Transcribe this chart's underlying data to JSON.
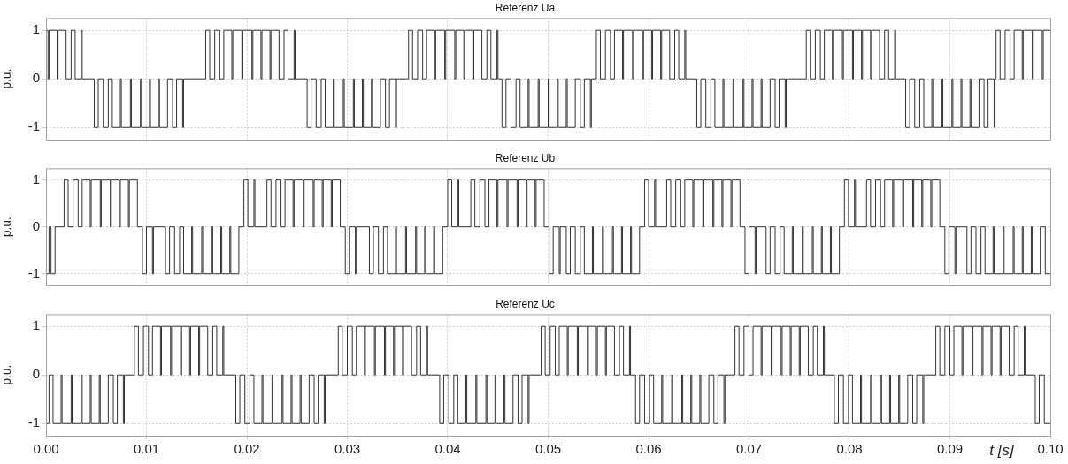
{
  "chart_data": [
    {
      "type": "step",
      "title": "Referenz Ua",
      "ylabel": "p.u.",
      "xlim": [
        0,
        0.1
      ],
      "ylim": [
        -1.25,
        1.25
      ],
      "yticks": [
        -1,
        0,
        1
      ],
      "xticks": [
        {
          "value": 0,
          "label": null
        },
        {
          "value": 0.01,
          "label": null
        },
        {
          "value": 0.02,
          "label": null
        },
        {
          "value": 0.03,
          "label": null
        },
        {
          "value": 0.04,
          "label": null
        },
        {
          "value": 0.05,
          "label": null
        },
        {
          "value": 0.06,
          "label": null
        },
        {
          "value": 0.07,
          "label": null
        },
        {
          "value": 0.08,
          "label": null
        },
        {
          "value": 0.09,
          "label": null
        },
        {
          "value": 0.1,
          "label": null
        }
      ],
      "grid": true,
      "tick_labels": "y",
      "series": [
        {
          "color": "#333333",
          "x": [
            0,
            0.0002,
            0.0003,
            0.0011,
            0.0012,
            0.002,
            0.0025,
            0.0029,
            0.0035,
            0.0036,
            0.0048,
            0.0052,
            0.0057,
            0.0062,
            0.0066,
            0.0074,
            0.0075,
            0.0084,
            0.0085,
            0.0094,
            0.0095,
            0.0103,
            0.0104,
            0.0112,
            0.0113,
            0.0121,
            0.0126,
            0.013,
            0.0136,
            0.0137,
            0.0159,
            0.0163,
            0.0168,
            0.0173,
            0.0177,
            0.0185,
            0.0186,
            0.0195,
            0.0196,
            0.0205,
            0.0206,
            0.0214,
            0.0215,
            0.0223,
            0.0224,
            0.0232,
            0.0237,
            0.0241,
            0.0247,
            0.0248,
            0.026,
            0.0264,
            0.0269,
            0.0274,
            0.0278,
            0.0286,
            0.0287,
            0.0296,
            0.0297,
            0.0306,
            0.0307,
            0.0315,
            0.0316,
            0.0324,
            0.0325,
            0.0333,
            0.0338,
            0.0342,
            0.0348,
            0.0349,
            0.0361,
            0.0365,
            0.037,
            0.0375,
            0.0379,
            0.0387,
            0.0388,
            0.0397,
            0.0398,
            0.0407,
            0.0408,
            0.0416,
            0.0417,
            0.0425,
            0.0426,
            0.0434,
            0.0439,
            0.0443,
            0.0449,
            0.045,
            0.0454,
            0.0458,
            0.0463,
            0.0468,
            0.0472,
            0.048,
            0.0481,
            0.049,
            0.0491,
            0.05,
            0.0501,
            0.0509,
            0.051,
            0.0518,
            0.0519,
            0.0527,
            0.0532,
            0.0536,
            0.0542,
            0.0543,
            0.0548,
            0.0552,
            0.0557,
            0.0562,
            0.0566,
            0.0574,
            0.0575,
            0.0584,
            0.0585,
            0.0594,
            0.0595,
            0.0603,
            0.0604,
            0.0612,
            0.0613,
            0.0621,
            0.0626,
            0.063,
            0.0636,
            0.0637,
            0.0648,
            0.0652,
            0.0657,
            0.0662,
            0.0666,
            0.0674,
            0.0675,
            0.0684,
            0.0685,
            0.0694,
            0.0695,
            0.0703,
            0.0704,
            0.0712,
            0.0713,
            0.0721,
            0.0726,
            0.073,
            0.0736,
            0.0737,
            0.0757,
            0.0761,
            0.0766,
            0.0771,
            0.0775,
            0.0783,
            0.0784,
            0.0793,
            0.0794,
            0.0803,
            0.0804,
            0.0812,
            0.0813,
            0.0821,
            0.0822,
            0.083,
            0.0835,
            0.0839,
            0.0845,
            0.0846,
            0.0856,
            0.086,
            0.0865,
            0.087,
            0.0874,
            0.0882,
            0.0883,
            0.0892,
            0.0893,
            0.0902,
            0.0903,
            0.0911,
            0.0912,
            0.092,
            0.0921,
            0.0929,
            0.0934,
            0.0938,
            0.0944,
            0.0945,
            0.0946,
            0.095,
            0.0955,
            0.096,
            0.0964,
            0.0972,
            0.0973,
            0.0982,
            0.0983,
            0.0992,
            0.0993,
            0.1
          ],
          "values": [
            1,
            0,
            1,
            0,
            1,
            0,
            1,
            0,
            1,
            0,
            -1,
            0,
            -1,
            0,
            -1,
            0,
            -1,
            0,
            -1,
            0,
            -1,
            0,
            -1,
            0,
            -1,
            0,
            -1,
            0,
            -1,
            0,
            1,
            0,
            1,
            0,
            1,
            0,
            1,
            0,
            1,
            0,
            1,
            0,
            1,
            0,
            1,
            0,
            1,
            0,
            1,
            0,
            -1,
            0,
            -1,
            0,
            -1,
            0,
            -1,
            0,
            -1,
            0,
            -1,
            0,
            -1,
            0,
            -1,
            0,
            -1,
            0,
            -1,
            0,
            1,
            0,
            1,
            0,
            1,
            0,
            1,
            0,
            1,
            0,
            1,
            0,
            1,
            0,
            1,
            0,
            1,
            0,
            1,
            0,
            -1,
            0,
            -1,
            0,
            -1,
            0,
            -1,
            0,
            -1,
            0,
            -1,
            0,
            -1,
            0,
            -1,
            0,
            -1,
            0,
            -1,
            0,
            1,
            0,
            1,
            0,
            1,
            0,
            1,
            0,
            1,
            0,
            1,
            0,
            1,
            0,
            1,
            0,
            1,
            0,
            1,
            0,
            -1,
            0,
            -1,
            0,
            -1,
            0,
            -1,
            0,
            -1,
            0,
            -1,
            0,
            -1,
            0,
            -1,
            0,
            -1,
            0,
            -1,
            0,
            1,
            0,
            1,
            0,
            1,
            0,
            1,
            0,
            1,
            0,
            1,
            0,
            1,
            0,
            1,
            0,
            1,
            0,
            1,
            0,
            -1,
            0,
            -1,
            0,
            -1,
            0,
            -1,
            0,
            -1,
            0,
            -1,
            0,
            -1,
            0,
            -1,
            0,
            -1,
            0,
            -1,
            0,
            1,
            0,
            1,
            0,
            1,
            0,
            1,
            0,
            1,
            0,
            1,
            1
          ]
        }
      ]
    },
    {
      "type": "step",
      "title": "Referenz Ub",
      "ylabel": "p.u.",
      "xlim": [
        0,
        0.1
      ],
      "ylim": [
        -1.25,
        1.25
      ],
      "yticks": [
        -1,
        0,
        1
      ],
      "xticks": [
        {
          "value": 0,
          "label": null
        },
        {
          "value": 0.01,
          "label": null
        },
        {
          "value": 0.02,
          "label": null
        },
        {
          "value": 0.03,
          "label": null
        },
        {
          "value": 0.04,
          "label": null
        },
        {
          "value": 0.05,
          "label": null
        },
        {
          "value": 0.06,
          "label": null
        },
        {
          "value": 0.07,
          "label": null
        },
        {
          "value": 0.08,
          "label": null
        },
        {
          "value": 0.09,
          "label": null
        },
        {
          "value": 0.1,
          "label": null
        }
      ],
      "grid": true,
      "tick_labels": "y",
      "series": [
        {
          "color": "#333333",
          "x": [
            0,
            0.0003,
            0.0005,
            0.0009,
            0.0018,
            0.0022,
            0.0027,
            0.0032,
            0.0036,
            0.0044,
            0.0045,
            0.0054,
            0.0055,
            0.0064,
            0.0065,
            0.0073,
            0.0074,
            0.0082,
            0.0083,
            0.0091,
            0.0096,
            0.01,
            0.0106,
            0.0107,
            0.0119,
            0.0123,
            0.0128,
            0.0133,
            0.0137,
            0.0145,
            0.0146,
            0.0155,
            0.0156,
            0.0165,
            0.0166,
            0.0174,
            0.0175,
            0.0183,
            0.0184,
            0.0192,
            0.0197,
            0.0201,
            0.0207,
            0.0208,
            0.022,
            0.0224,
            0.0229,
            0.0234,
            0.0238,
            0.0246,
            0.0247,
            0.0256,
            0.0257,
            0.0266,
            0.0267,
            0.0275,
            0.0276,
            0.0284,
            0.0285,
            0.0293,
            0.0298,
            0.0302,
            0.0308,
            0.0309,
            0.0322,
            0.0326,
            0.0331,
            0.0336,
            0.034,
            0.0348,
            0.0349,
            0.0358,
            0.0359,
            0.0368,
            0.0369,
            0.0377,
            0.0378,
            0.0386,
            0.0387,
            0.0395,
            0.04,
            0.0404,
            0.041,
            0.0411,
            0.0423,
            0.0427,
            0.0432,
            0.0437,
            0.0441,
            0.0449,
            0.045,
            0.0459,
            0.046,
            0.0469,
            0.047,
            0.0478,
            0.0479,
            0.0487,
            0.0488,
            0.0496,
            0.0501,
            0.0505,
            0.0511,
            0.0512,
            0.0518,
            0.0522,
            0.0527,
            0.0532,
            0.0536,
            0.0544,
            0.0545,
            0.0554,
            0.0555,
            0.0564,
            0.0565,
            0.0573,
            0.0574,
            0.0582,
            0.0583,
            0.0591,
            0.0596,
            0.06,
            0.0606,
            0.0607,
            0.0618,
            0.0622,
            0.0627,
            0.0632,
            0.0636,
            0.0644,
            0.0645,
            0.0654,
            0.0655,
            0.0664,
            0.0665,
            0.0673,
            0.0674,
            0.0682,
            0.0683,
            0.0691,
            0.0696,
            0.07,
            0.0706,
            0.0707,
            0.0717,
            0.0721,
            0.0726,
            0.0731,
            0.0735,
            0.0743,
            0.0744,
            0.0753,
            0.0754,
            0.0763,
            0.0764,
            0.0772,
            0.0773,
            0.0781,
            0.0782,
            0.079,
            0.0795,
            0.0799,
            0.0805,
            0.0806,
            0.0817,
            0.0821,
            0.0826,
            0.0831,
            0.0835,
            0.0843,
            0.0844,
            0.0853,
            0.0854,
            0.0863,
            0.0864,
            0.0872,
            0.0873,
            0.0881,
            0.0882,
            0.089,
            0.0895,
            0.0899,
            0.0905,
            0.0906,
            0.0917,
            0.0921,
            0.0926,
            0.0931,
            0.0935,
            0.0943,
            0.0944,
            0.0953,
            0.0954,
            0.0963,
            0.0964,
            0.0972,
            0.0973,
            0.0981,
            0.0982,
            0.099,
            0.0995,
            0.1
          ],
          "values": [
            -1,
            0,
            -1,
            0,
            1,
            0,
            1,
            0,
            1,
            0,
            1,
            0,
            1,
            0,
            1,
            0,
            1,
            0,
            1,
            0,
            -1,
            0,
            -1,
            0,
            -1,
            0,
            -1,
            0,
            -1,
            0,
            -1,
            0,
            -1,
            0,
            -1,
            0,
            -1,
            0,
            -1,
            0,
            1,
            0,
            1,
            0,
            1,
            0,
            1,
            0,
            1,
            0,
            1,
            0,
            1,
            0,
            1,
            0,
            1,
            0,
            1,
            0,
            -1,
            0,
            -1,
            0,
            -1,
            0,
            -1,
            0,
            -1,
            0,
            -1,
            0,
            -1,
            0,
            -1,
            0,
            -1,
            0,
            -1,
            0,
            1,
            0,
            1,
            0,
            1,
            0,
            1,
            0,
            1,
            0,
            1,
            0,
            1,
            0,
            1,
            0,
            1,
            0,
            1,
            0,
            -1,
            0,
            -1,
            0,
            -1,
            0,
            -1,
            0,
            -1,
            0,
            -1,
            0,
            -1,
            0,
            -1,
            0,
            -1,
            0,
            -1,
            0,
            1,
            0,
            1,
            0,
            1,
            0,
            1,
            0,
            1,
            0,
            1,
            0,
            1,
            0,
            1,
            0,
            1,
            0,
            1,
            0,
            -1,
            0,
            -1,
            0,
            -1,
            0,
            -1,
            0,
            -1,
            0,
            -1,
            0,
            -1,
            0,
            -1,
            0,
            -1,
            0,
            -1,
            0,
            1,
            0,
            1,
            0,
            1,
            0,
            1,
            0,
            1,
            0,
            1,
            0,
            1,
            0,
            1,
            0,
            1,
            0,
            1,
            0,
            -1,
            0,
            -1,
            0,
            -1,
            0,
            -1,
            0,
            -1,
            0,
            -1,
            0,
            -1,
            0,
            -1,
            0,
            -1,
            0,
            -1,
            0,
            -1,
            -1
          ]
        }
      ]
    },
    {
      "type": "step",
      "title": "Referenz Uc",
      "ylabel": "p.u.",
      "xlabel": "t [s]",
      "xlim": [
        0,
        0.1
      ],
      "ylim": [
        -1.25,
        1.25
      ],
      "yticks": [
        -1,
        0,
        1
      ],
      "xticks": [
        {
          "value": 0,
          "label": "0.00"
        },
        {
          "value": 0.01,
          "label": "0.01"
        },
        {
          "value": 0.02,
          "label": "0.02"
        },
        {
          "value": 0.03,
          "label": "0.03"
        },
        {
          "value": 0.04,
          "label": "0.04"
        },
        {
          "value": 0.05,
          "label": "0.05"
        },
        {
          "value": 0.06,
          "label": "0.06"
        },
        {
          "value": 0.07,
          "label": "0.07"
        },
        {
          "value": 0.08,
          "label": "0.08"
        },
        {
          "value": 0.09,
          "label": "0.09"
        },
        {
          "value": 0.1,
          "label": "0.10"
        }
      ],
      "grid": true,
      "series": [
        {
          "color": "#333333",
          "x": [
            0,
            0.0003,
            0.0007,
            0.0015,
            0.0016,
            0.0025,
            0.0026,
            0.0035,
            0.0036,
            0.0044,
            0.0045,
            0.0053,
            0.0054,
            0.0062,
            0.0067,
            0.0071,
            0.0077,
            0.0078,
            0.0088,
            0.0092,
            0.0097,
            0.0102,
            0.0106,
            0.0114,
            0.0115,
            0.0124,
            0.0125,
            0.0134,
            0.0135,
            0.0143,
            0.0144,
            0.0152,
            0.0153,
            0.0161,
            0.0166,
            0.017,
            0.0176,
            0.0177,
            0.0189,
            0.0193,
            0.0198,
            0.0203,
            0.0207,
            0.0215,
            0.0216,
            0.0225,
            0.0226,
            0.0235,
            0.0236,
            0.0244,
            0.0245,
            0.0253,
            0.0254,
            0.0262,
            0.0267,
            0.0271,
            0.0277,
            0.0278,
            0.0291,
            0.0295,
            0.03,
            0.0305,
            0.0309,
            0.0317,
            0.0318,
            0.0327,
            0.0328,
            0.0337,
            0.0338,
            0.0346,
            0.0347,
            0.0355,
            0.0356,
            0.0364,
            0.0369,
            0.0373,
            0.0379,
            0.038,
            0.0392,
            0.0396,
            0.0401,
            0.0406,
            0.041,
            0.0418,
            0.0419,
            0.0428,
            0.0429,
            0.0438,
            0.0439,
            0.0447,
            0.0448,
            0.0456,
            0.0457,
            0.0465,
            0.047,
            0.0474,
            0.048,
            0.0481,
            0.0493,
            0.0497,
            0.0502,
            0.0507,
            0.0511,
            0.0519,
            0.052,
            0.0529,
            0.053,
            0.0539,
            0.054,
            0.0548,
            0.0549,
            0.0557,
            0.0558,
            0.0566,
            0.0571,
            0.0575,
            0.0581,
            0.0582,
            0.0587,
            0.0591,
            0.0596,
            0.0601,
            0.0605,
            0.0613,
            0.0614,
            0.0623,
            0.0624,
            0.0633,
            0.0634,
            0.0642,
            0.0643,
            0.0651,
            0.0652,
            0.066,
            0.0665,
            0.0669,
            0.0675,
            0.0676,
            0.0686,
            0.069,
            0.0695,
            0.07,
            0.0704,
            0.0712,
            0.0713,
            0.0722,
            0.0723,
            0.0732,
            0.0733,
            0.0741,
            0.0742,
            0.075,
            0.0751,
            0.0759,
            0.0764,
            0.0768,
            0.0774,
            0.0775,
            0.0785,
            0.0789,
            0.0794,
            0.0799,
            0.0803,
            0.0811,
            0.0812,
            0.0821,
            0.0822,
            0.0831,
            0.0832,
            0.084,
            0.0841,
            0.0849,
            0.085,
            0.0858,
            0.0863,
            0.0867,
            0.0873,
            0.0874,
            0.0886,
            0.089,
            0.0895,
            0.09,
            0.0904,
            0.0912,
            0.0913,
            0.0922,
            0.0923,
            0.0932,
            0.0933,
            0.0941,
            0.0942,
            0.095,
            0.0951,
            0.0959,
            0.0964,
            0.0968,
            0.0974,
            0.0975,
            0.0985,
            0.0989,
            0.0994,
            0.1
          ],
          "values": [
            -1,
            0,
            -1,
            0,
            -1,
            0,
            -1,
            0,
            -1,
            0,
            -1,
            0,
            -1,
            0,
            -1,
            0,
            -1,
            0,
            1,
            0,
            1,
            0,
            1,
            0,
            1,
            0,
            1,
            0,
            1,
            0,
            1,
            0,
            1,
            0,
            1,
            0,
            1,
            0,
            -1,
            0,
            -1,
            0,
            -1,
            0,
            -1,
            0,
            -1,
            0,
            -1,
            0,
            -1,
            0,
            -1,
            0,
            -1,
            0,
            -1,
            0,
            1,
            0,
            1,
            0,
            1,
            0,
            1,
            0,
            1,
            0,
            1,
            0,
            1,
            0,
            1,
            0,
            1,
            0,
            1,
            0,
            -1,
            0,
            -1,
            0,
            -1,
            0,
            -1,
            0,
            -1,
            0,
            -1,
            0,
            -1,
            0,
            -1,
            0,
            -1,
            0,
            -1,
            0,
            1,
            0,
            1,
            0,
            1,
            0,
            1,
            0,
            1,
            0,
            1,
            0,
            1,
            0,
            1,
            0,
            1,
            0,
            1,
            0,
            -1,
            0,
            -1,
            0,
            -1,
            0,
            -1,
            0,
            -1,
            0,
            -1,
            0,
            -1,
            0,
            -1,
            0,
            -1,
            0,
            -1,
            0,
            1,
            0,
            1,
            0,
            1,
            0,
            1,
            0,
            1,
            0,
            1,
            0,
            1,
            0,
            1,
            0,
            1,
            0,
            1,
            0,
            -1,
            0,
            -1,
            0,
            -1,
            0,
            -1,
            0,
            -1,
            0,
            -1,
            0,
            -1,
            0,
            -1,
            0,
            -1,
            0,
            -1,
            0,
            1,
            0,
            1,
            0,
            1,
            0,
            1,
            0,
            1,
            0,
            1,
            0,
            1,
            0,
            1,
            0,
            1,
            0,
            1,
            0,
            -1,
            0,
            -1,
            -1
          ]
        }
      ]
    }
  ]
}
